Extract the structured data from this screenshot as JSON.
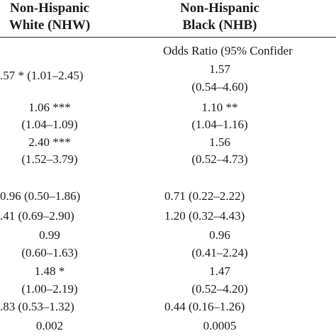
{
  "header": {
    "col1_line1": "Non-Hispanic",
    "col1_line2": "White (NHW)",
    "col2_line1": "Non-Hispanic",
    "col2_line2": "Black (NHB)"
  },
  "subheader": "Odds Ratio (95% Confider",
  "nhw": [
    ".57 * (1.01–2.45)",
    "1.06 ***",
    "(1.04–1.09)",
    "2.40 ***",
    "(1.52–3.79)",
    "0.96 (0.50–1.86)",
    ".41 (0.69–2.90)",
    "0.99",
    "(0.60–1.63)",
    "1.48 *",
    "(1.00–2.19)",
    ".83 (0.53–1.32)",
    "0.002"
  ],
  "nhb": [
    "1.57",
    "(0.54–4.60)",
    "1.10 **",
    "(1.04–1.16)",
    "1.56",
    "(0.52–4.73)",
    "0.71 (0.22–2.22)",
    "1.20 (0.32–4.43)",
    "0.96",
    "(0.41–2.24)",
    "1.47",
    "(0.52–4.20)",
    "0.44 (0.16–1.26)",
    "0.0005"
  ]
}
